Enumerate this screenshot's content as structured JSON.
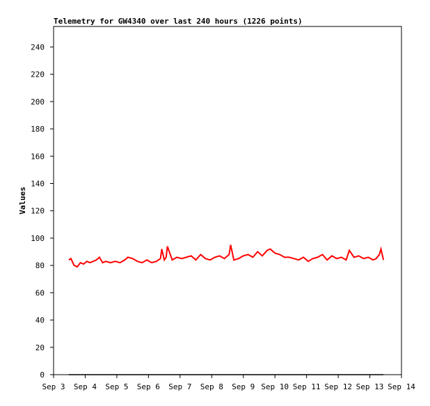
{
  "chart_data": {
    "type": "line",
    "title": "Telemetry for GW4340 over last 240 hours (1226 points)",
    "y_label": "Values",
    "xlim": [
      3,
      14
    ],
    "xticks": [
      {
        "value": 3,
        "label": "Sep 3"
      },
      {
        "value": 4,
        "label": "Sep 4"
      },
      {
        "value": 5,
        "label": "Sep 5"
      },
      {
        "value": 6,
        "label": "Sep 6"
      },
      {
        "value": 7,
        "label": "Sep 7"
      },
      {
        "value": 8,
        "label": "Sep 8"
      },
      {
        "value": 9,
        "label": "Sep 9"
      },
      {
        "value": 10,
        "label": "Sep 10"
      },
      {
        "value": 11,
        "label": "Sep 11"
      },
      {
        "value": 12,
        "label": "Sep 12"
      },
      {
        "value": 13,
        "label": "Sep 13"
      },
      {
        "value": 14,
        "label": "Sep 14"
      }
    ],
    "ylim": [
      0,
      255
    ],
    "yticks": [
      0,
      20,
      40,
      60,
      80,
      100,
      120,
      140,
      160,
      180,
      200,
      220,
      240
    ],
    "series": [
      {
        "color": "#ff0000",
        "x": [
          3.48,
          3.55,
          3.65,
          3.75,
          3.85,
          3.95,
          4.05,
          4.15,
          4.25,
          4.35,
          4.45,
          4.55,
          4.65,
          4.8,
          4.95,
          5.1,
          5.25,
          5.35,
          5.5,
          5.65,
          5.8,
          5.95,
          6.1,
          6.25,
          6.38,
          6.42,
          6.5,
          6.56,
          6.6,
          6.75,
          6.9,
          7.05,
          7.2,
          7.35,
          7.5,
          7.65,
          7.8,
          7.95,
          8.1,
          8.25,
          8.4,
          8.55,
          8.6,
          8.7,
          8.85,
          9.0,
          9.15,
          9.3,
          9.45,
          9.6,
          9.75,
          9.85,
          10.0,
          10.15,
          10.3,
          10.45,
          10.6,
          10.75,
          10.9,
          11.05,
          11.2,
          11.35,
          11.5,
          11.65,
          11.8,
          11.95,
          12.1,
          12.25,
          12.35,
          12.5,
          12.65,
          12.8,
          12.95,
          13.1,
          13.2,
          13.3,
          13.35,
          13.43
        ],
        "values": [
          84,
          85,
          80,
          79,
          82,
          81,
          83,
          82,
          83,
          84,
          86,
          82,
          83,
          82,
          83,
          82,
          84,
          86,
          85,
          83,
          82,
          84,
          82,
          83,
          85,
          92,
          84,
          86,
          94,
          84,
          86,
          85,
          86,
          87,
          84,
          88,
          85,
          84,
          86,
          87,
          85,
          88,
          95,
          84,
          85,
          87,
          88,
          86,
          90,
          87,
          91,
          92,
          89,
          88,
          86,
          86,
          85,
          84,
          86,
          83,
          85,
          86,
          88,
          84,
          87,
          85,
          86,
          84,
          91,
          86,
          87,
          85,
          86,
          84,
          85,
          88,
          92,
          84
        ]
      },
      {
        "color": "#000000",
        "x": [
          3.48,
          13.43
        ],
        "values": [
          0,
          0
        ]
      }
    ]
  }
}
